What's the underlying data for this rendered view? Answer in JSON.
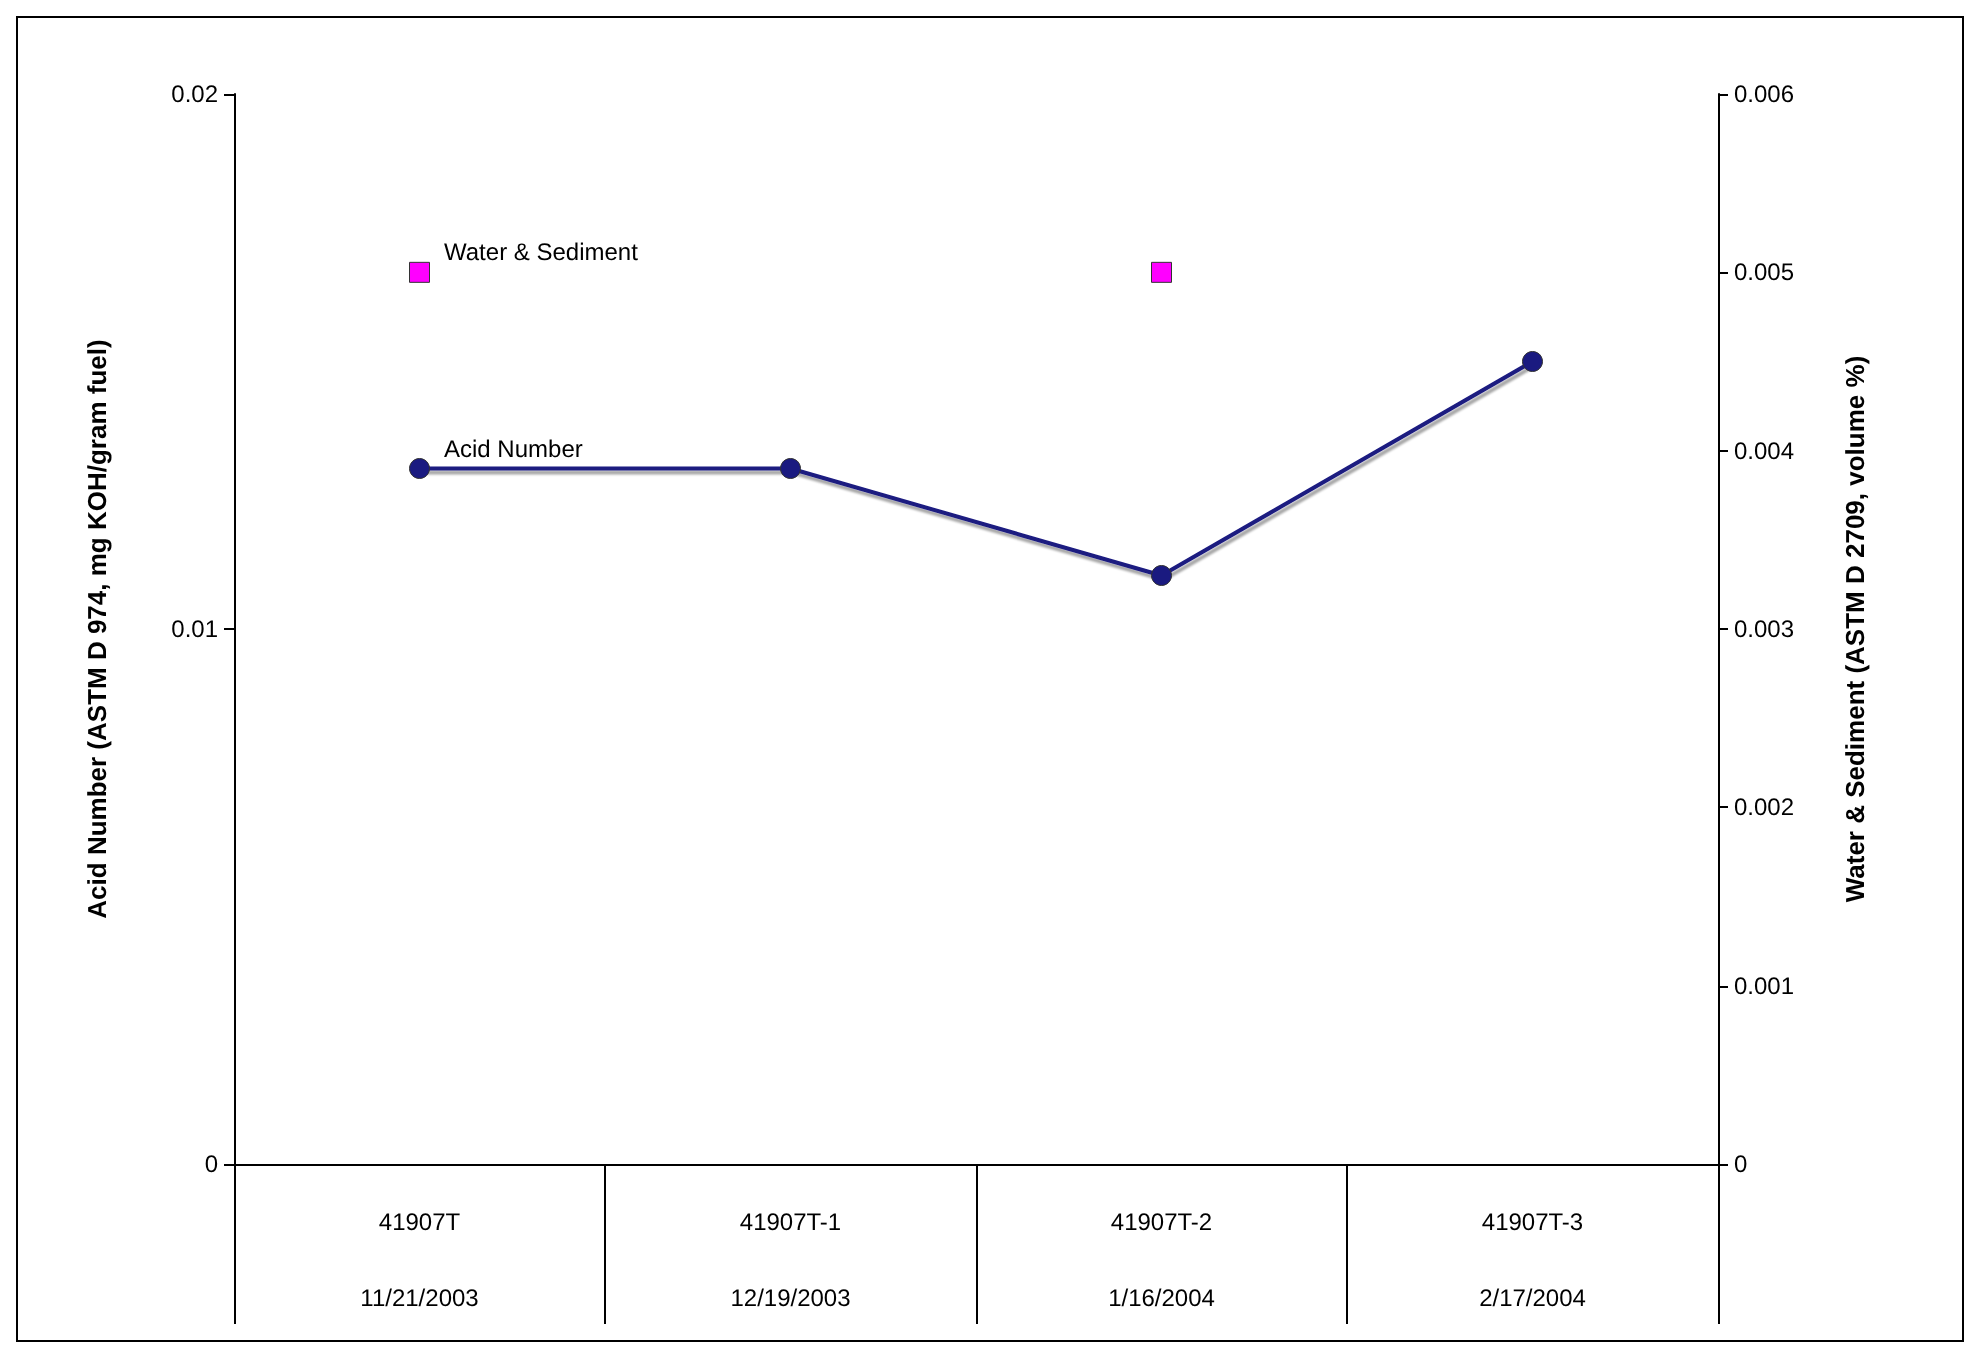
{
  "chart_data": {
    "type": "line",
    "categories": [
      "41907T\n11/21/2003",
      "41907T-1\n12/19/2003",
      "41907T-2\n1/16/2004",
      "41907T-3\n2/17/2004"
    ],
    "ylabel": "Acid Number (ASTM D 974, mg KOH/gram fuel)",
    "y2label": "Water & Sediment (ASTM D 2709, volume %)",
    "ylim": [
      0,
      0.02
    ],
    "yticks": [
      0,
      0.01,
      0.02
    ],
    "y2lim": [
      0,
      0.006
    ],
    "y2ticks": [
      0,
      0.001,
      0.002,
      0.003,
      0.004,
      0.005,
      0.006
    ],
    "series": [
      {
        "name": "Water & Sediment",
        "color": "#ff00ff",
        "values": [
          0.005,
          null,
          0.005,
          null
        ],
        "axis": "y2",
        "marker": "square"
      },
      {
        "name": "Acid Number",
        "color": "#1a1a80",
        "values": [
          0.013,
          0.013,
          0.011,
          0.015
        ],
        "marker": "circle"
      }
    ],
    "grid": false,
    "legend": false
  }
}
